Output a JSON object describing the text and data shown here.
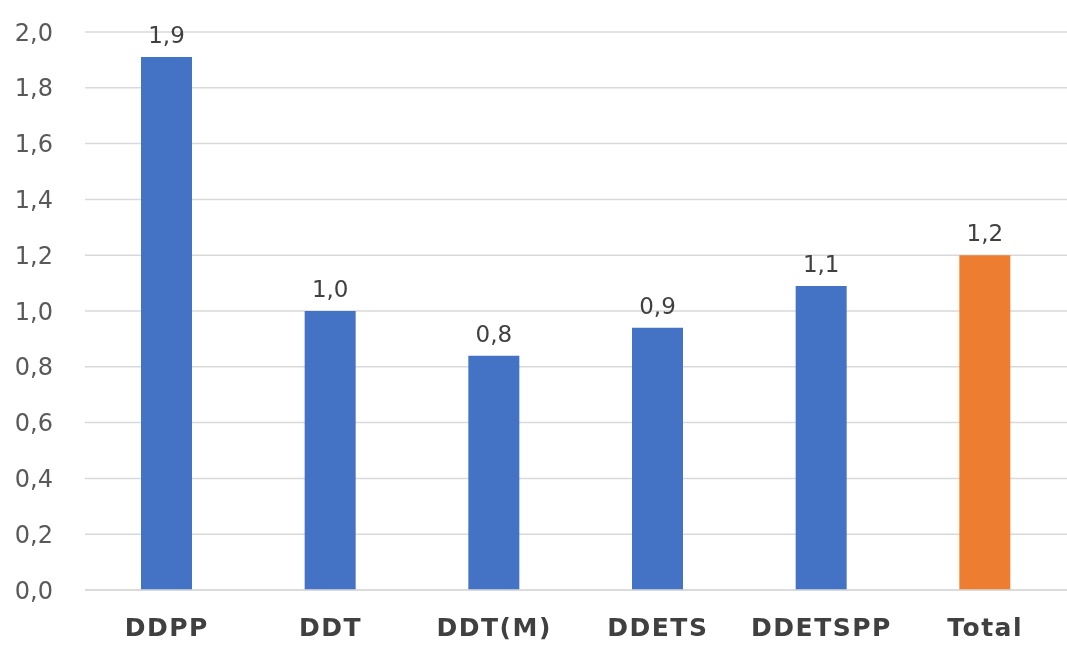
{
  "chart_data": {
    "type": "bar",
    "categories": [
      "DDPP",
      "DDT",
      "DDT(M)",
      "DDETS",
      "DDETSPP",
      "Total"
    ],
    "values": [
      1.91,
      1.0,
      0.84,
      0.94,
      1.09,
      1.2
    ],
    "colors": [
      "#4472c4",
      "#4472c4",
      "#4472c4",
      "#4472c4",
      "#4472c4",
      "#ed7d31"
    ],
    "value_labels": [
      "1,9",
      "1,0",
      "0,8",
      "0,9",
      "1,1",
      "1,2"
    ],
    "ylim": [
      0,
      2
    ],
    "yticks": [
      {
        "value": 0,
        "label": "0,0"
      },
      {
        "value": 0.2,
        "label": "0,2"
      },
      {
        "value": 0.4,
        "label": "0,4"
      },
      {
        "value": 0.6,
        "label": "0,6"
      },
      {
        "value": 0.8,
        "label": "0,8"
      },
      {
        "value": 1,
        "label": "1,0"
      },
      {
        "value": 1.2,
        "label": "1,2"
      },
      {
        "value": 1.4,
        "label": "1,4"
      },
      {
        "value": 1.6,
        "label": "1,6"
      },
      {
        "value": 1.8,
        "label": "1,8"
      },
      {
        "value": 2,
        "label": "2,0"
      }
    ],
    "grid": "y"
  }
}
